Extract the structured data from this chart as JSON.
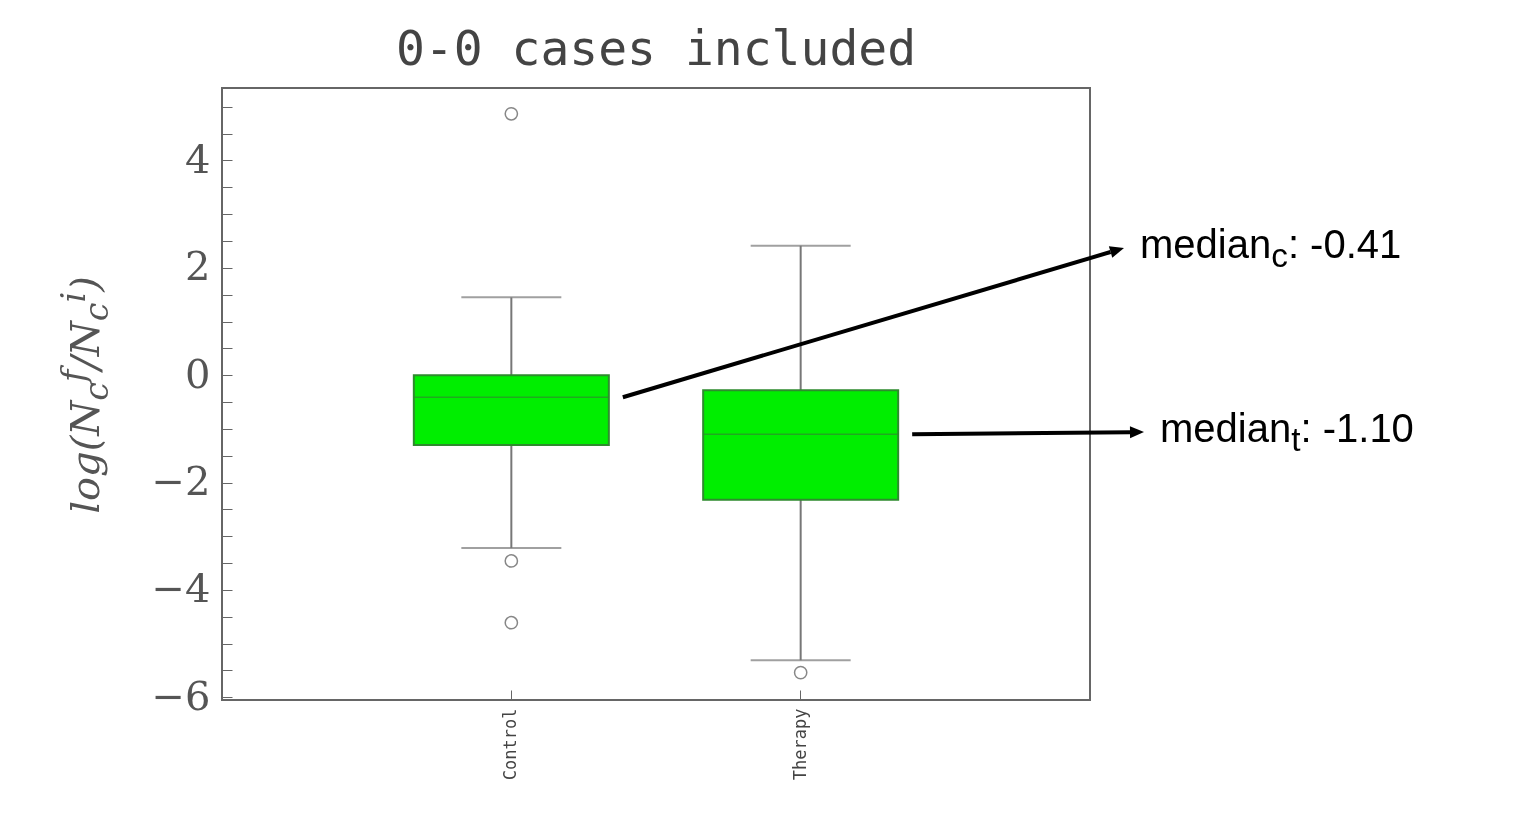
{
  "chart_data": {
    "type": "box",
    "title": "0-0 cases included",
    "ylabel": "log(N$_{c}$$^{f}$/N$_{c}$$^{i}$)",
    "categories": [
      "Control",
      "Therapy"
    ],
    "color": "#00ee00",
    "boxes": [
      {
        "low": -3.22,
        "q1": -1.3,
        "median": -0.41,
        "q3": 0,
        "high": 1.45,
        "outliers": [
          4.87,
          -3.46,
          -4.61
        ]
      },
      {
        "low": -5.31,
        "q1": -2.32,
        "median": -1.1,
        "q3": -0.28,
        "high": 2.41,
        "outliers": [
          -5.54
        ]
      }
    ],
    "ylim": [
      -6.05,
      5.35
    ],
    "yticks": [
      {
        "value": -6,
        "label": "−6"
      },
      {
        "value": -5.5,
        "label": null
      },
      {
        "value": -5,
        "label": null
      },
      {
        "value": -4.5,
        "label": null
      },
      {
        "value": -4,
        "label": "−4"
      },
      {
        "value": -3.5,
        "label": null
      },
      {
        "value": -3,
        "label": null
      },
      {
        "value": -2.5,
        "label": null
      },
      {
        "value": -2,
        "label": "−2"
      },
      {
        "value": -1.5,
        "label": null
      },
      {
        "value": -1,
        "label": null
      },
      {
        "value": -0.5,
        "label": null
      },
      0,
      {
        "value": 0.5,
        "label": null
      },
      {
        "value": 1,
        "label": null
      },
      {
        "value": 1.5,
        "label": null
      },
      2,
      {
        "value": 2.5,
        "label": null
      },
      {
        "value": 3,
        "label": null
      },
      {
        "value": 3.5,
        "label": null
      },
      4,
      {
        "value": 4.5,
        "label": null
      },
      {
        "value": 5,
        "label": null
      }
    ],
    "grid": false,
    "annotations": [
      "median$_{c}$: -0.41",
      "median$_{t}$: -1.10"
    ]
  }
}
